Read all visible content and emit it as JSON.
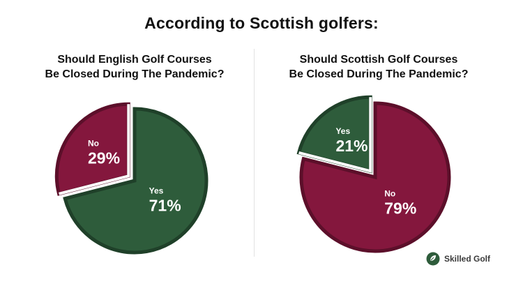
{
  "page": {
    "title": "According to Scottish golfers:"
  },
  "colors": {
    "yes": "#2e5c3b",
    "yes_border": "#1f4029",
    "no": "#84173d",
    "no_border": "#5c0f2a"
  },
  "chart_data": [
    {
      "type": "pie",
      "title_lines": [
        "Should English Golf Courses",
        "Be Closed During The Pandemic?"
      ],
      "slices": [
        {
          "label": "Yes",
          "value": 71,
          "display": "71%",
          "color": "#2e5c3b",
          "border": "#1f4029",
          "exploded": false
        },
        {
          "label": "No",
          "value": 29,
          "display": "29%",
          "color": "#84173d",
          "border": "#5c0f2a",
          "exploded": true
        }
      ]
    },
    {
      "type": "pie",
      "title_lines": [
        "Should Scottish Golf Courses",
        "Be Closed During The Pandemic?"
      ],
      "slices": [
        {
          "label": "No",
          "value": 79,
          "display": "79%",
          "color": "#84173d",
          "border": "#5c0f2a",
          "exploded": false
        },
        {
          "label": "Yes",
          "value": 21,
          "display": "21%",
          "color": "#2e5c3b",
          "border": "#1f4029",
          "exploded": true
        }
      ]
    }
  ],
  "brand": {
    "name": "Skilled Golf",
    "logo_icon": "golf-ball-leaf-icon"
  }
}
